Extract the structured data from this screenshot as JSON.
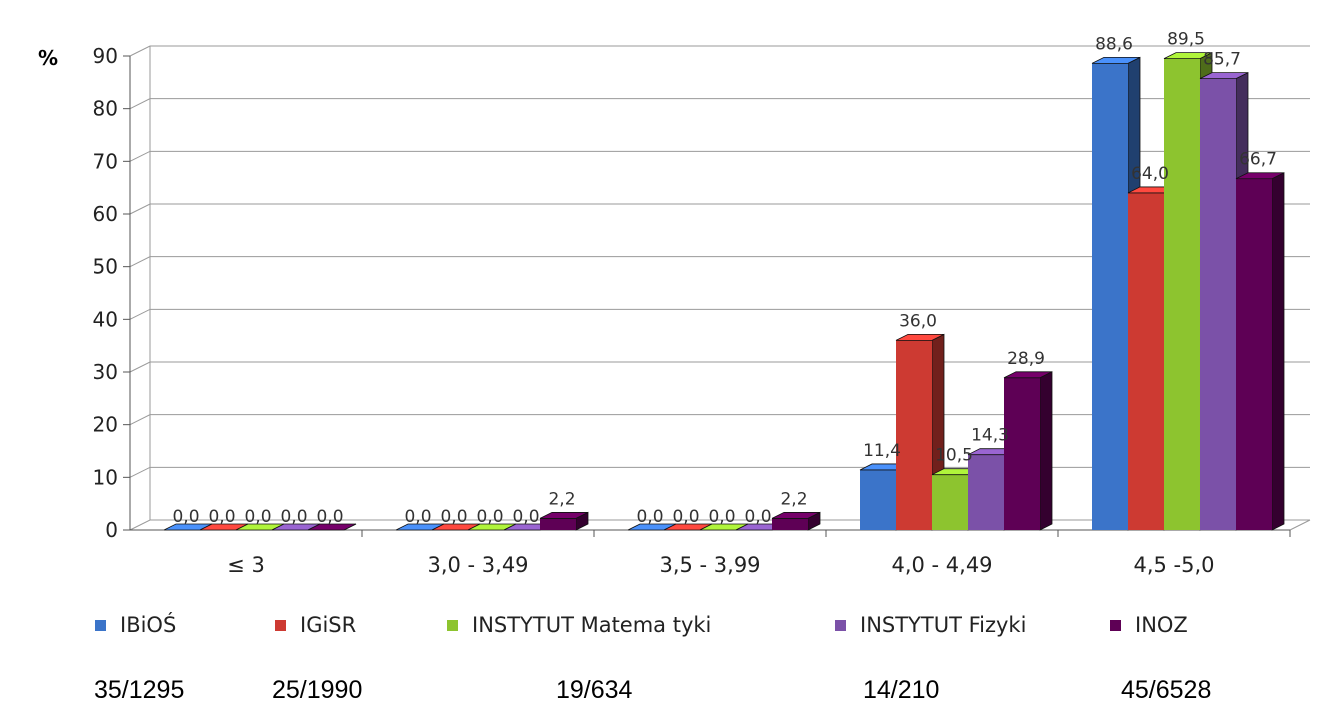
{
  "chart_data": {
    "type": "bar",
    "title": "",
    "ylabel": "%",
    "xlabel": "",
    "ylim": [
      0,
      90
    ],
    "yticks": [
      0,
      10,
      20,
      30,
      40,
      50,
      60,
      70,
      80,
      90
    ],
    "grid": true,
    "legend_position": "bottom",
    "categories": [
      "≤ 3",
      "3,0 - 3,49",
      "3,5 - 3,99",
      "4,0 - 4,49",
      "4,5 -5,0"
    ],
    "series": [
      {
        "name": "IBiOŚ",
        "color": "#3b74c9",
        "values": [
          0.0,
          0.0,
          0.0,
          11.4,
          88.6
        ],
        "labels": [
          "0,0",
          "0,0",
          "0,0",
          "11,4",
          "88,6"
        ]
      },
      {
        "name": "IGiSR",
        "color": "#cd3a32",
        "values": [
          0.0,
          0.0,
          0.0,
          36.0,
          64.0
        ],
        "labels": [
          "0,0",
          "0,0",
          "0,0",
          "36,0",
          "64,0"
        ]
      },
      {
        "name": "INSTYTUT Matema tyki",
        "color": "#8dc42f",
        "values": [
          0.0,
          0.0,
          0.0,
          10.5,
          89.5
        ],
        "labels": [
          "0,0",
          "0,0",
          "0,0",
          "10,5",
          "89,5"
        ]
      },
      {
        "name": "INSTYTUT Fizyki",
        "color": "#7b51a8",
        "values": [
          0.0,
          0.0,
          0.0,
          14.3,
          85.7
        ],
        "labels": [
          "0,0",
          "0,0",
          "0,0",
          "14,3",
          "85,7"
        ]
      },
      {
        "name": "INOZ",
        "color": "#5e0055",
        "values": [
          0.0,
          2.2,
          2.2,
          28.9,
          66.7
        ],
        "labels": [
          "0,0",
          "2,2",
          "2,2",
          "28,9",
          "66,7"
        ]
      }
    ],
    "counts": [
      "35/1295",
      "25/1990",
      "19/634",
      "14/210",
      "45/6528"
    ]
  }
}
